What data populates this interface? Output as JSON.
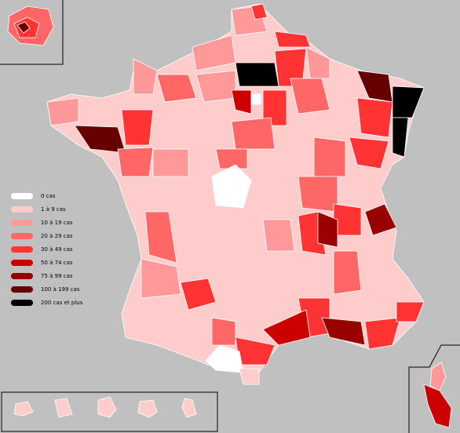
{
  "legend": {
    "items": [
      {
        "label": "0 cas",
        "color": "#ffffff"
      },
      {
        "label": "1 à 9 cas",
        "color": "#ffcccc"
      },
      {
        "label": "10 à 19 cas",
        "color": "#ff9999"
      },
      {
        "label": "20 à 29 cas",
        "color": "#ff6666"
      },
      {
        "label": "30 à 49 cas",
        "color": "#ff3333"
      },
      {
        "label": "50 à 74 cas",
        "color": "#cc0000"
      },
      {
        "label": "75 à 99 cas",
        "color": "#990000"
      },
      {
        "label": "100 à 199 cas",
        "color": "#660000"
      },
      {
        "label": "200 cas et plus",
        "color": "#000000"
      }
    ]
  }
}
